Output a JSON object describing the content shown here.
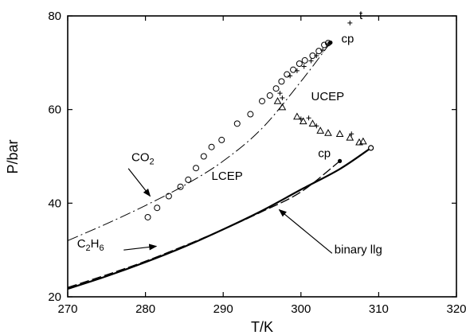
{
  "chart_data": {
    "type": "scatter",
    "title": "",
    "xlabel": "T/K",
    "ylabel": "P/bar",
    "xlim": [
      270,
      320
    ],
    "ylim": [
      20,
      80
    ],
    "x_ticks": [
      270,
      280,
      290,
      300,
      310,
      320
    ],
    "y_ticks": [
      20,
      40,
      60,
      80
    ],
    "grid": false,
    "curves": [
      {
        "id": "co2-dashdot",
        "style": "dash-dot",
        "points": [
          [
            270,
            32
          ],
          [
            275,
            35.6
          ],
          [
            280,
            39.5
          ],
          [
            285,
            43.8
          ],
          [
            290,
            49.0
          ],
          [
            295,
            56.0
          ],
          [
            300,
            66.0
          ],
          [
            303.8,
            74.3
          ]
        ]
      },
      {
        "id": "c2h6-dashed",
        "style": "dashed",
        "points": [
          [
            270,
            22.0
          ],
          [
            275,
            24.7
          ],
          [
            280,
            27.6
          ],
          [
            285,
            30.9
          ],
          [
            290,
            34.4
          ],
          [
            295,
            38.2
          ],
          [
            300,
            42.4
          ],
          [
            305,
            49.0
          ]
        ]
      },
      {
        "id": "binary-llg-solid",
        "style": "solid",
        "points": [
          [
            270,
            21.7
          ],
          [
            275,
            24.4
          ],
          [
            280,
            27.4
          ],
          [
            285,
            30.7
          ],
          [
            290,
            34.4
          ],
          [
            295,
            38.4
          ],
          [
            300,
            42.9
          ],
          [
            305,
            47.3
          ],
          [
            309,
            51.8
          ]
        ]
      }
    ],
    "circles": [
      [
        280.3,
        37.0
      ],
      [
        281.5,
        39.0
      ],
      [
        283.0,
        41.5
      ],
      [
        284.5,
        43.5
      ],
      [
        285.5,
        45.0
      ],
      [
        286.5,
        47.5
      ],
      [
        287.5,
        50.0
      ],
      [
        288.5,
        52.0
      ],
      [
        289.8,
        53.5
      ],
      [
        291.8,
        57.0
      ],
      [
        293.5,
        59.0
      ],
      [
        295.0,
        61.8
      ],
      [
        296.0,
        63.0
      ],
      [
        296.8,
        64.5
      ],
      [
        297.5,
        66.0
      ],
      [
        298.2,
        67.5
      ],
      [
        299.0,
        68.5
      ],
      [
        299.8,
        69.8
      ],
      [
        300.5,
        70.5
      ],
      [
        301.5,
        71.5
      ],
      [
        302.3,
        72.5
      ],
      [
        303.0,
        73.8
      ],
      [
        303.5,
        74.2
      ]
    ],
    "triangles": [
      [
        297.0,
        61.8
      ],
      [
        297.6,
        60.5
      ],
      [
        299.5,
        58.5
      ],
      [
        300.3,
        57.5
      ],
      [
        301.5,
        57.0
      ],
      [
        302.5,
        55.5
      ],
      [
        303.5,
        55.0
      ],
      [
        305.0,
        54.8
      ],
      [
        306.3,
        54.0
      ],
      [
        307.5,
        53.0
      ],
      [
        308.0,
        53.2
      ]
    ],
    "crosses": [
      [
        297.3,
        63.5
      ],
      [
        297.6,
        62.5
      ],
      [
        300.0,
        58.0
      ],
      [
        301.0,
        58.2
      ],
      [
        302.0,
        56.5
      ],
      [
        306.5,
        54.8
      ],
      [
        298.6,
        67.2
      ],
      [
        299.5,
        68.3
      ],
      [
        300.4,
        69.2
      ],
      [
        301.3,
        70.4
      ],
      [
        302.0,
        71.5
      ],
      [
        302.8,
        72.7
      ],
      [
        303.5,
        74.0
      ],
      [
        306.3,
        78.5
      ]
    ],
    "filled_dots": [
      [
        303.8,
        74.3
      ],
      [
        305.0,
        49.0
      ]
    ],
    "open_circle_end": [
      309.0,
      51.8
    ],
    "labels": [
      {
        "text": "cp",
        "x": 305.2,
        "y": 74.3
      },
      {
        "text": "t",
        "x": 307.5,
        "y": 79.3
      },
      {
        "text": "UCEP",
        "x": 301.3,
        "y": 62.0
      },
      {
        "text": "LCEP",
        "x": 288.5,
        "y": 45.0
      },
      {
        "text": "cp",
        "x": 302.2,
        "y": 49.8
      },
      {
        "text": "binary llg",
        "x": 304.3,
        "y": 29.3
      }
    ],
    "species_labels": [
      {
        "text": "CO",
        "sub": "2",
        "x": 278.2,
        "y": 49.0
      },
      {
        "text": "C",
        "sub": "2",
        "text2": "H",
        "sub2": "6",
        "x": 271.2,
        "y": 30.5
      }
    ],
    "arrows": [
      {
        "from": [
          277.8,
          47.4
        ],
        "to": [
          280.6,
          41.5
        ]
      },
      {
        "from": [
          277.2,
          30.0
        ],
        "to": [
          281.4,
          30.8
        ]
      },
      {
        "from": [
          304.0,
          29.3
        ],
        "to": [
          297.2,
          38.6
        ]
      }
    ]
  }
}
